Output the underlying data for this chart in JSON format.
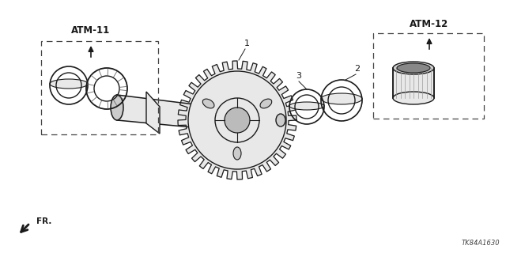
{
  "bg_color": "#ffffff",
  "line_color": "#1a1a1a",
  "gray_fill": "#e8e8e8",
  "gray_mid": "#cccccc",
  "dashed_color": "#444444",
  "label_atm11": "ATM-11",
  "label_atm12": "ATM-12",
  "label_fr": "FR.",
  "label_1": "1",
  "label_2": "2",
  "label_3": "3",
  "ref_code": "TK84A1630",
  "fig_width": 6.4,
  "fig_height": 3.2,
  "dpi": 100
}
